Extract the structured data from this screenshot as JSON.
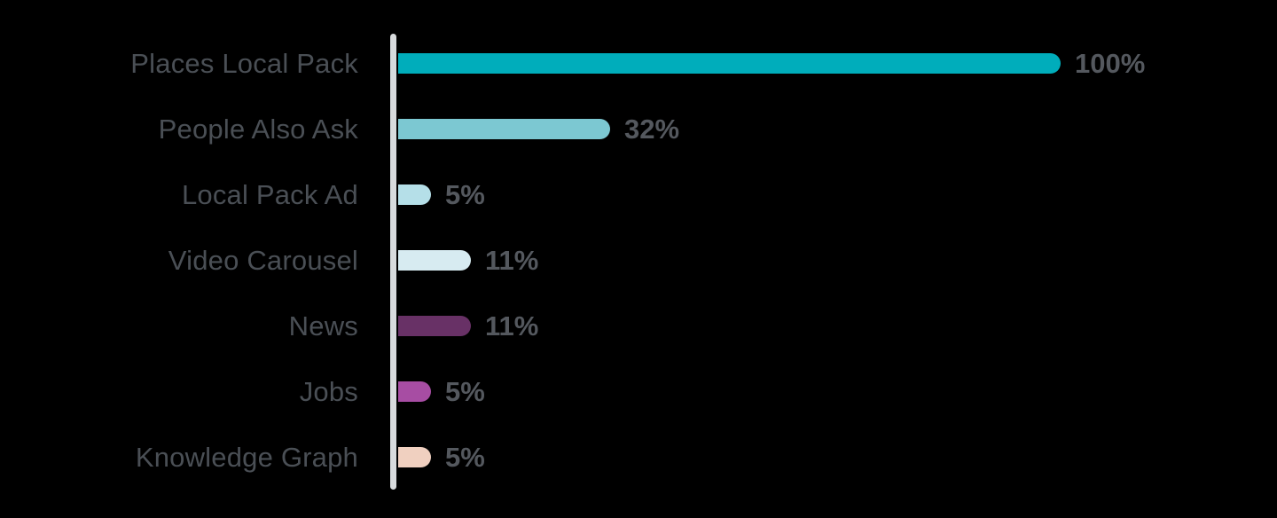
{
  "chart_data": {
    "type": "bar",
    "orientation": "horizontal",
    "categories": [
      "Places Local Pack",
      "People Also Ask",
      "Local Pack Ad",
      "Video Carousel",
      "News",
      "Jobs",
      "Knowledge Graph"
    ],
    "values": [
      100,
      32,
      5,
      11,
      11,
      5,
      5
    ],
    "value_labels": [
      "100%",
      "32%",
      "5%",
      "11%",
      "11%",
      "5%",
      "5%"
    ],
    "bar_colors": [
      "#00ADBB",
      "#7CC8D2",
      "#B5DFE8",
      "#D7EBF1",
      "#683166",
      "#A74DA3",
      "#F0D0C0"
    ],
    "xlim": [
      0,
      100
    ],
    "grid": false,
    "legend": false,
    "axis_line_color": "#D8DBDD",
    "category_label_color": "#4A4F55",
    "value_label_color": "#54585E",
    "background_color": "#000000"
  }
}
